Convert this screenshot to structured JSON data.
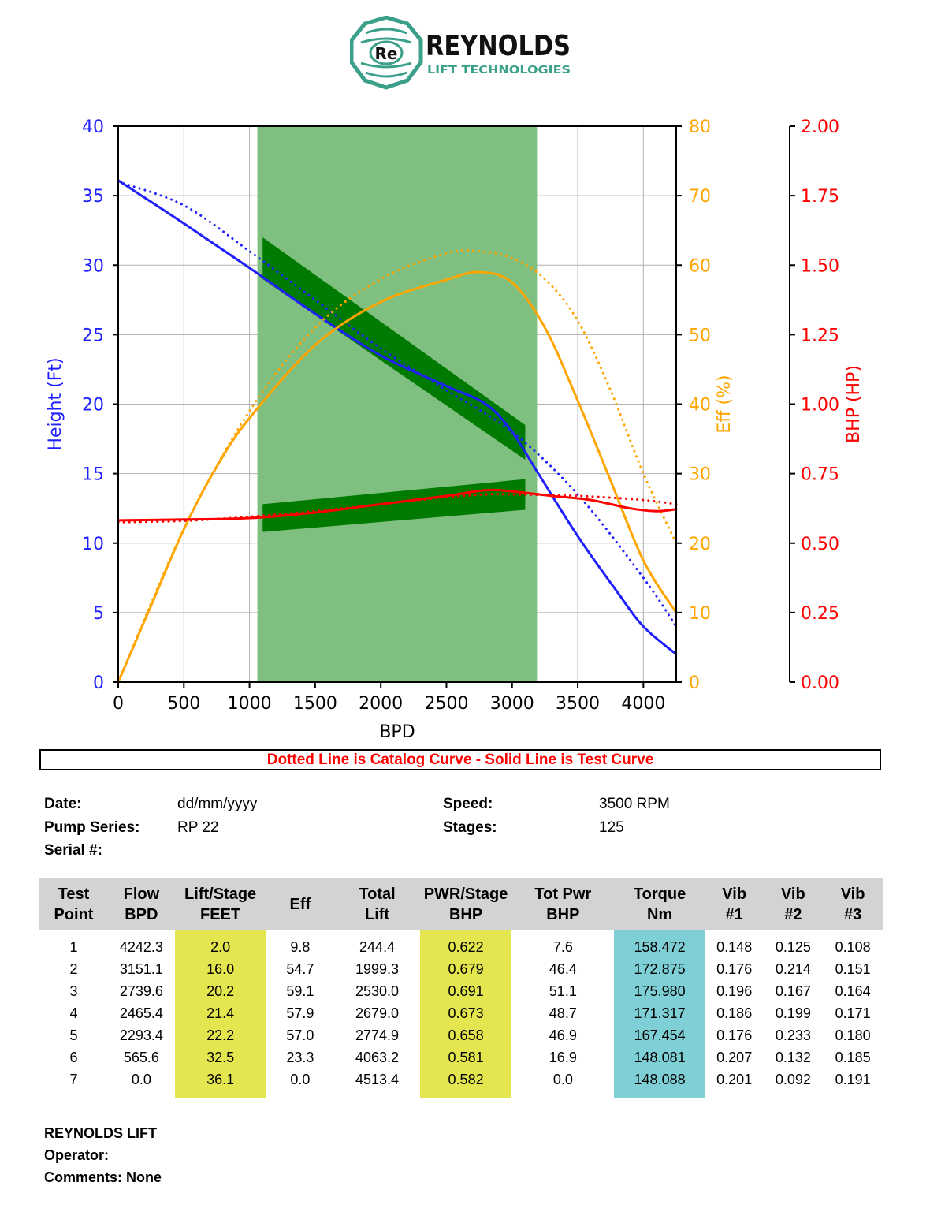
{
  "logo": {
    "mark_text": "Re",
    "name": "REYNOLDS",
    "tagline": "LIFT TECHNOLOGIES",
    "color": "#3aa08a"
  },
  "chart_data": {
    "type": "line",
    "xlabel": "BPD",
    "xlim": [
      0,
      4250
    ],
    "x_ticks": [
      0,
      500,
      1000,
      1500,
      2000,
      2500,
      3000,
      3500,
      4000
    ],
    "y_axes": [
      {
        "name": "Height (Ft)",
        "ylim": [
          0,
          40
        ],
        "ticks": [
          "0",
          "5",
          "10",
          "15",
          "20",
          "25",
          "30",
          "35",
          "40"
        ],
        "color": "#1f1fff"
      },
      {
        "name": "Eff (%)",
        "ylim": [
          0,
          80
        ],
        "ticks": [
          "0",
          "10",
          "20",
          "30",
          "40",
          "50",
          "60",
          "70",
          "80"
        ],
        "color": "#ffa500"
      },
      {
        "name": "BHP (HP)",
        "ylim": [
          0,
          2
        ],
        "ticks": [
          "0.00",
          "0.25",
          "0.50",
          "0.75",
          "1.00",
          "1.25",
          "1.50",
          "1.75",
          "2.00"
        ],
        "color": "#ff0000"
      }
    ],
    "grid": true,
    "recommended_range": {
      "x_start": 1060,
      "x_end": 3190,
      "color": "#7fbf7f"
    },
    "head_tolerance_band": {
      "x": [
        1100,
        3100
      ],
      "upper": [
        32,
        18.5
      ],
      "lower": [
        29,
        16
      ],
      "color": "#007a00"
    },
    "bhp_tolerance_band": {
      "x": [
        1100,
        3100
      ],
      "upper": [
        0.64,
        0.73
      ],
      "lower": [
        0.54,
        0.62
      ],
      "color": "#007a00"
    },
    "series": [
      {
        "name": "Height Test",
        "axis": 0,
        "style": "solid",
        "color": "#1f1fff",
        "x": [
          0,
          500,
          1000,
          1500,
          2000,
          2500,
          2800,
          3000,
          3200,
          3500,
          3800,
          4000,
          4250
        ],
        "y": [
          36.1,
          33.0,
          29.8,
          26.5,
          23.5,
          21.3,
          20.0,
          18.0,
          15.0,
          10.5,
          6.5,
          4.0,
          2.0
        ]
      },
      {
        "name": "Height Catalog",
        "axis": 0,
        "style": "dotted",
        "color": "#1f1fff",
        "x": [
          0,
          500,
          1000,
          1500,
          2000,
          2500,
          3000,
          3500,
          4000,
          4250
        ],
        "y": [
          36.0,
          34.3,
          31.0,
          27.5,
          24.0,
          21.0,
          18.0,
          13.5,
          7.5,
          4.0
        ]
      },
      {
        "name": "Eff Test",
        "axis": 1,
        "style": "solid",
        "color": "#ffa500",
        "x": [
          0,
          250,
          500,
          750,
          1000,
          1500,
          2000,
          2500,
          2750,
          3000,
          3250,
          3500,
          3750,
          4000,
          4250
        ],
        "y": [
          0,
          11,
          22,
          31,
          38,
          48.5,
          54.7,
          57.9,
          59.0,
          57.5,
          51.0,
          40.5,
          29.0,
          17.5,
          10.0
        ]
      },
      {
        "name": "Eff Catalog",
        "axis": 1,
        "style": "dotted",
        "color": "#ffa500",
        "x": [
          0,
          500,
          1000,
          1500,
          2000,
          2500,
          2750,
          3000,
          3250,
          3500,
          3750,
          4000,
          4250
        ],
        "y": [
          0,
          22,
          39,
          51,
          58,
          61.7,
          62,
          61,
          58,
          52,
          42,
          30,
          20
        ]
      },
      {
        "name": "BHP Test",
        "axis": 2,
        "style": "solid",
        "color": "#ff0000",
        "x": [
          0,
          500,
          1000,
          1500,
          2000,
          2500,
          2800,
          3000,
          3300,
          3600,
          3900,
          4100,
          4250
        ],
        "y": [
          0.582,
          0.585,
          0.59,
          0.61,
          0.64,
          0.67,
          0.69,
          0.686,
          0.67,
          0.655,
          0.625,
          0.615,
          0.622
        ]
      },
      {
        "name": "BHP Catalog",
        "axis": 2,
        "style": "dotted",
        "color": "#ff0000",
        "x": [
          0,
          500,
          1000,
          1500,
          2000,
          2500,
          2800,
          3000,
          3500,
          4000,
          4250
        ],
        "y": [
          0.575,
          0.58,
          0.595,
          0.615,
          0.64,
          0.665,
          0.675,
          0.675,
          0.67,
          0.655,
          0.64
        ]
      }
    ]
  },
  "caption": "Dotted Line is Catalog Curve - Solid Line is Test Curve",
  "info": {
    "date_label": "Date:",
    "date_value": "dd/mm/yyyy",
    "pump_label": "Pump Series:",
    "pump_value": "RP 22",
    "serial_label": "Serial #:",
    "speed_label": "Speed:",
    "speed_value": "3500 RPM",
    "stages_label": "Stages:",
    "stages_value": "125"
  },
  "table": {
    "headers": [
      [
        "Test",
        "Point"
      ],
      [
        "Flow",
        "BPD"
      ],
      [
        "Lift/Stage",
        "FEET"
      ],
      [
        "Eff",
        ""
      ],
      [
        "Total",
        "Lift"
      ],
      [
        "PWR/Stage",
        "BHP"
      ],
      [
        "Tot Pwr",
        "BHP"
      ],
      [
        "Torque",
        "Nm"
      ],
      [
        "Vib",
        "#1"
      ],
      [
        "Vib",
        "#2"
      ],
      [
        "Vib",
        "#3"
      ]
    ],
    "rows": [
      [
        "1",
        "4242.3",
        "2.0",
        "9.8",
        "244.4",
        "0.622",
        "7.6",
        "158.472",
        "0.148",
        "0.125",
        "0.108"
      ],
      [
        "2",
        "3151.1",
        "16.0",
        "54.7",
        "1999.3",
        "0.679",
        "46.4",
        "172.875",
        "0.176",
        "0.214",
        "0.151"
      ],
      [
        "3",
        "2739.6",
        "20.2",
        "59.1",
        "2530.0",
        "0.691",
        "51.1",
        "175.980",
        "0.196",
        "0.167",
        "0.164"
      ],
      [
        "4",
        "2465.4",
        "21.4",
        "57.9",
        "2679.0",
        "0.673",
        "48.7",
        "171.317",
        "0.186",
        "0.199",
        "0.171"
      ],
      [
        "5",
        "2293.4",
        "22.2",
        "57.0",
        "2774.9",
        "0.658",
        "46.9",
        "167.454",
        "0.176",
        "0.233",
        "0.180"
      ],
      [
        "6",
        "565.6",
        "32.5",
        "23.3",
        "4063.2",
        "0.581",
        "16.9",
        "148.081",
        "0.207",
        "0.132",
        "0.185"
      ],
      [
        "7",
        "0.0",
        "36.1",
        "0.0",
        "4513.4",
        "0.582",
        "0.0",
        "148.088",
        "0.201",
        "0.092",
        "0.191"
      ]
    ]
  },
  "footer": {
    "company": "REYNOLDS LIFT",
    "operator_label": "Operator:",
    "comments_label": "Comments: None"
  }
}
